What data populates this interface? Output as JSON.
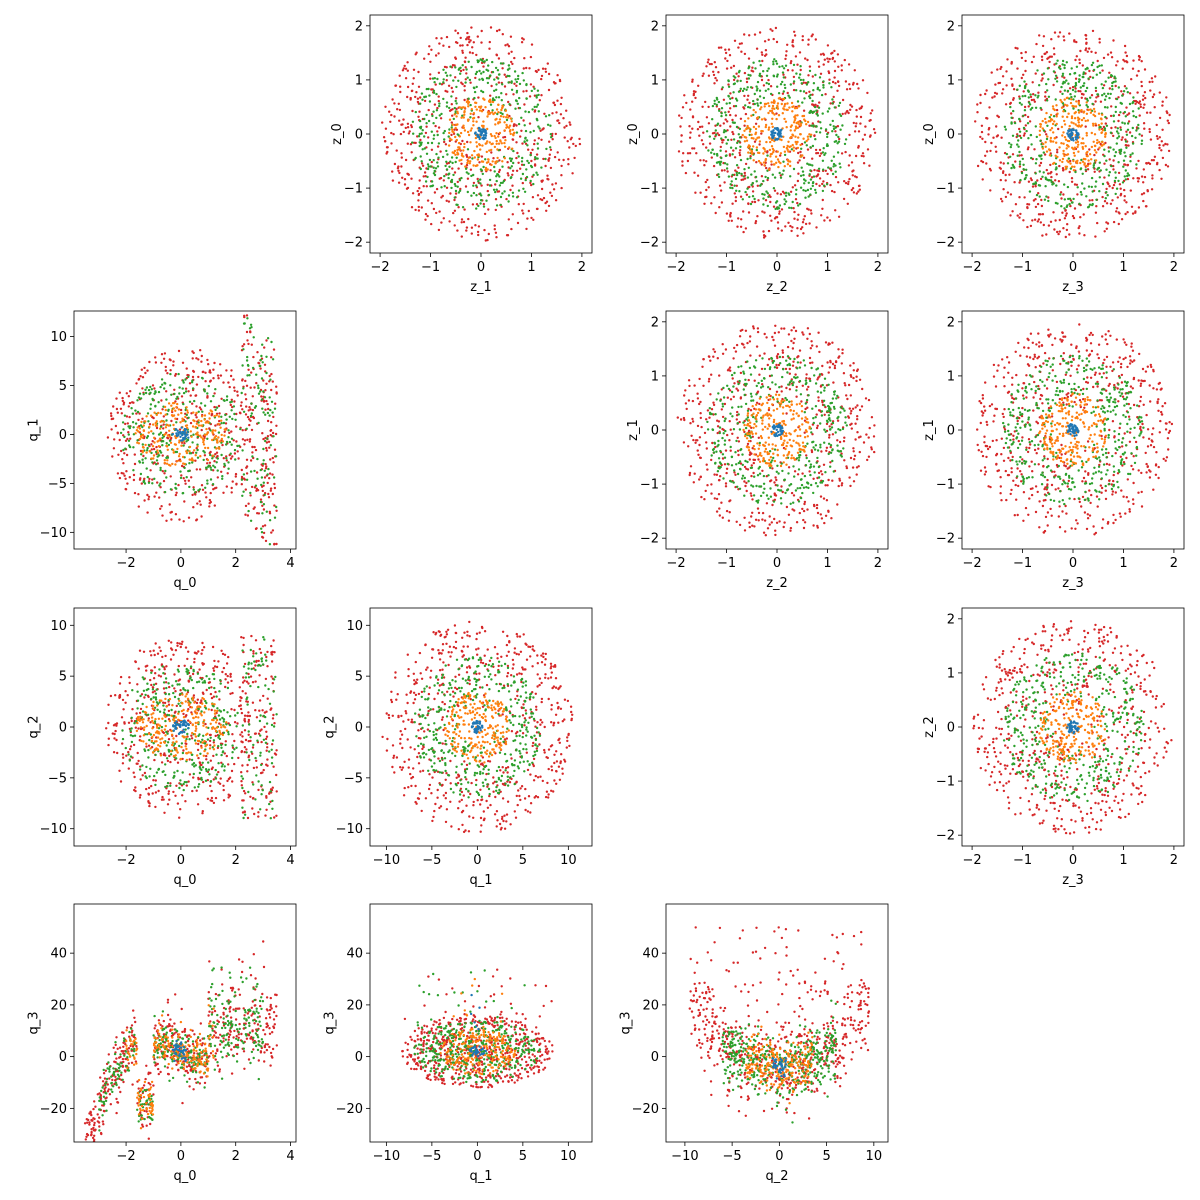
{
  "colors": {
    "c0": "#1f77b4",
    "c1": "#ff7f0e",
    "c2": "#2ca02c",
    "c3": "#d62728"
  },
  "chart_data": [
    {
      "type": "scatter",
      "xlabel": "z_1",
      "ylabel": "z_0",
      "xlim": [
        -2.2,
        2.2
      ],
      "ylim": [
        -2.2,
        2.2
      ],
      "xticks": [
        -2,
        -1,
        0,
        1,
        2
      ],
      "yticks": [
        -2,
        -1,
        0,
        1,
        2
      ],
      "pattern": "zz",
      "series": [
        {
          "color": "c0",
          "radius": [
            0,
            0.12
          ],
          "count": 40
        },
        {
          "color": "c1",
          "radius": [
            0,
            0.68
          ],
          "count": 220
        },
        {
          "color": "c2",
          "radius": [
            0.35,
            1.4
          ],
          "count": 400
        },
        {
          "color": "c3",
          "radius": [
            0.25,
            1.98
          ],
          "count": 600
        }
      ]
    },
    {
      "type": "scatter",
      "xlabel": "z_2",
      "ylabel": "z_0",
      "xlim": [
        -2.2,
        2.2
      ],
      "ylim": [
        -2.2,
        2.2
      ],
      "xticks": [
        -2,
        -1,
        0,
        1,
        2
      ],
      "yticks": [
        -2,
        -1,
        0,
        1,
        2
      ],
      "pattern": "zz",
      "series": [
        {
          "color": "c0",
          "radius": [
            0,
            0.12
          ],
          "count": 40
        },
        {
          "color": "c1",
          "radius": [
            0,
            0.68
          ],
          "count": 220
        },
        {
          "color": "c2",
          "radius": [
            0.35,
            1.4
          ],
          "count": 400
        },
        {
          "color": "c3",
          "radius": [
            0.25,
            1.98
          ],
          "count": 600
        }
      ]
    },
    {
      "type": "scatter",
      "xlabel": "z_3",
      "ylabel": "z_0",
      "xlim": [
        -2.2,
        2.2
      ],
      "ylim": [
        -2.2,
        2.2
      ],
      "xticks": [
        -2,
        -1,
        0,
        1,
        2
      ],
      "yticks": [
        -2,
        -1,
        0,
        1,
        2
      ],
      "pattern": "zz",
      "series": [
        {
          "color": "c0",
          "radius": [
            0,
            0.12
          ],
          "count": 40
        },
        {
          "color": "c1",
          "radius": [
            0,
            0.68
          ],
          "count": 220
        },
        {
          "color": "c2",
          "radius": [
            0.35,
            1.4
          ],
          "count": 400
        },
        {
          "color": "c3",
          "radius": [
            0.25,
            1.98
          ],
          "count": 600
        }
      ]
    },
    {
      "type": "scatter",
      "xlabel": "q_0",
      "ylabel": "q_1",
      "xlim": [
        -3.9,
        4.2
      ],
      "ylim": [
        -11.7,
        12.6
      ],
      "xticks": [
        -2,
        0,
        2,
        4
      ],
      "yticks": [
        -10,
        -5,
        0,
        5,
        10
      ],
      "pattern": "q0q1",
      "series": [
        {
          "color": "c0",
          "scale": [
            0.25,
            0.7
          ],
          "count": 40
        },
        {
          "color": "c1",
          "scale": [
            1.3,
            3.3
          ],
          "count": 220
        },
        {
          "color": "c2",
          "scale": [
            1.7,
            6.3
          ],
          "count": 400
        },
        {
          "color": "c3",
          "scale": [
            2.1,
            9.0
          ],
          "count": 600
        }
      ]
    },
    {
      "type": "scatter",
      "xlabel": "z_2",
      "ylabel": "z_1",
      "xlim": [
        -2.2,
        2.2
      ],
      "ylim": [
        -2.2,
        2.2
      ],
      "xticks": [
        -2,
        -1,
        0,
        1,
        2
      ],
      "yticks": [
        -2,
        -1,
        0,
        1,
        2
      ],
      "pattern": "zz",
      "series": [
        {
          "color": "c0",
          "radius": [
            0,
            0.12
          ],
          "count": 40
        },
        {
          "color": "c1",
          "radius": [
            0,
            0.68
          ],
          "count": 220
        },
        {
          "color": "c2",
          "radius": [
            0.35,
            1.4
          ],
          "count": 400
        },
        {
          "color": "c3",
          "radius": [
            0.25,
            1.98
          ],
          "count": 600
        }
      ]
    },
    {
      "type": "scatter",
      "xlabel": "z_3",
      "ylabel": "z_1",
      "xlim": [
        -2.2,
        2.2
      ],
      "ylim": [
        -2.2,
        2.2
      ],
      "xticks": [
        -2,
        -1,
        0,
        1,
        2
      ],
      "yticks": [
        -2,
        -1,
        0,
        1,
        2
      ],
      "pattern": "zz",
      "series": [
        {
          "color": "c0",
          "radius": [
            0,
            0.12
          ],
          "count": 40
        },
        {
          "color": "c1",
          "radius": [
            0,
            0.68
          ],
          "count": 220
        },
        {
          "color": "c2",
          "radius": [
            0.35,
            1.4
          ],
          "count": 400
        },
        {
          "color": "c3",
          "radius": [
            0.25,
            1.98
          ],
          "count": 600
        }
      ]
    },
    {
      "type": "scatter",
      "xlabel": "q_0",
      "ylabel": "q_2",
      "xlim": [
        -3.9,
        4.2
      ],
      "ylim": [
        -11.7,
        11.7
      ],
      "xticks": [
        -2,
        0,
        2,
        4
      ],
      "yticks": [
        -10,
        -5,
        0,
        5,
        10
      ],
      "pattern": "q0q2",
      "series": [
        {
          "color": "c0",
          "scale": [
            0.25,
            0.7
          ],
          "count": 40
        },
        {
          "color": "c1",
          "scale": [
            1.3,
            3.3
          ],
          "count": 220
        },
        {
          "color": "c2",
          "scale": [
            1.7,
            6.3
          ],
          "count": 400
        },
        {
          "color": "c3",
          "scale": [
            2.1,
            9.0
          ],
          "count": 600
        }
      ]
    },
    {
      "type": "scatter",
      "xlabel": "q_1",
      "ylabel": "q_2",
      "xlim": [
        -11.8,
        12.6
      ],
      "ylim": [
        -11.7,
        11.7
      ],
      "xticks": [
        -10,
        -5,
        0,
        5,
        10
      ],
      "yticks": [
        -10,
        -5,
        0,
        5,
        10
      ],
      "pattern": "qq",
      "series": [
        {
          "color": "c0",
          "radius": [
            0,
            0.6
          ],
          "count": 40
        },
        {
          "color": "c1",
          "radius": [
            0,
            3.6
          ],
          "count": 220
        },
        {
          "color": "c2",
          "radius": [
            1.5,
            7.0
          ],
          "count": 400
        },
        {
          "color": "c3",
          "radius": [
            2.0,
            10.5
          ],
          "count": 600
        }
      ]
    },
    {
      "type": "scatter",
      "xlabel": "z_3",
      "ylabel": "z_2",
      "xlim": [
        -2.2,
        2.2
      ],
      "ylim": [
        -2.2,
        2.2
      ],
      "xticks": [
        -2,
        -1,
        0,
        1,
        2
      ],
      "yticks": [
        -2,
        -1,
        0,
        1,
        2
      ],
      "pattern": "zz",
      "series": [
        {
          "color": "c0",
          "radius": [
            0,
            0.12
          ],
          "count": 40
        },
        {
          "color": "c1",
          "radius": [
            0,
            0.68
          ],
          "count": 220
        },
        {
          "color": "c2",
          "radius": [
            0.35,
            1.4
          ],
          "count": 400
        },
        {
          "color": "c3",
          "radius": [
            0.25,
            1.98
          ],
          "count": 600
        }
      ]
    },
    {
      "type": "scatter",
      "xlabel": "q_0",
      "ylabel": "q_3",
      "xlim": [
        -3.9,
        4.2
      ],
      "ylim": [
        -33,
        59
      ],
      "xticks": [
        -2,
        0,
        2,
        4
      ],
      "yticks": [
        -20,
        0,
        20,
        40
      ],
      "pattern": "q0q3",
      "series": [
        {
          "color": "c0",
          "spread": 0.25,
          "noise": 2,
          "count": 40
        },
        {
          "color": "c1",
          "spread": 1.2,
          "noise": 4,
          "count": 220
        },
        {
          "color": "c2",
          "spread": 2.0,
          "noise": 5,
          "count": 400
        },
        {
          "color": "c3",
          "spread": 3.5,
          "noise": 6,
          "count": 600
        }
      ]
    },
    {
      "type": "scatter",
      "xlabel": "q_1",
      "ylabel": "q_3",
      "xlim": [
        -11.8,
        12.6
      ],
      "ylim": [
        -33,
        59
      ],
      "xticks": [
        -10,
        -5,
        0,
        5,
        10
      ],
      "yticks": [
        -20,
        0,
        20,
        40
      ],
      "pattern": "q1q3",
      "series": [
        {
          "color": "c0",
          "scale": [
            0.7,
            2
          ],
          "count": 40
        },
        {
          "color": "c1",
          "scale": [
            3.0,
            9
          ],
          "count": 220
        },
        {
          "color": "c2",
          "scale": [
            5.0,
            12
          ],
          "count": 400
        },
        {
          "color": "c3",
          "scale": [
            6.0,
            14
          ],
          "count": 600
        }
      ]
    },
    {
      "type": "scatter",
      "xlabel": "q_2",
      "ylabel": "q_3",
      "xlim": [
        -12,
        11.5
      ],
      "ylim": [
        -33,
        59
      ],
      "xticks": [
        -10,
        -5,
        0,
        5,
        10
      ],
      "yticks": [
        -20,
        0,
        20,
        40
      ],
      "pattern": "q2q3",
      "series": [
        {
          "color": "c0",
          "spread": 0.7,
          "noise": 2,
          "count": 40
        },
        {
          "color": "c1",
          "spread": 3.5,
          "noise": 5,
          "count": 220
        },
        {
          "color": "c2",
          "spread": 6.0,
          "noise": 6,
          "count": 400
        },
        {
          "color": "c3",
          "spread": 9.5,
          "noise": 9,
          "count": 600
        }
      ]
    }
  ]
}
